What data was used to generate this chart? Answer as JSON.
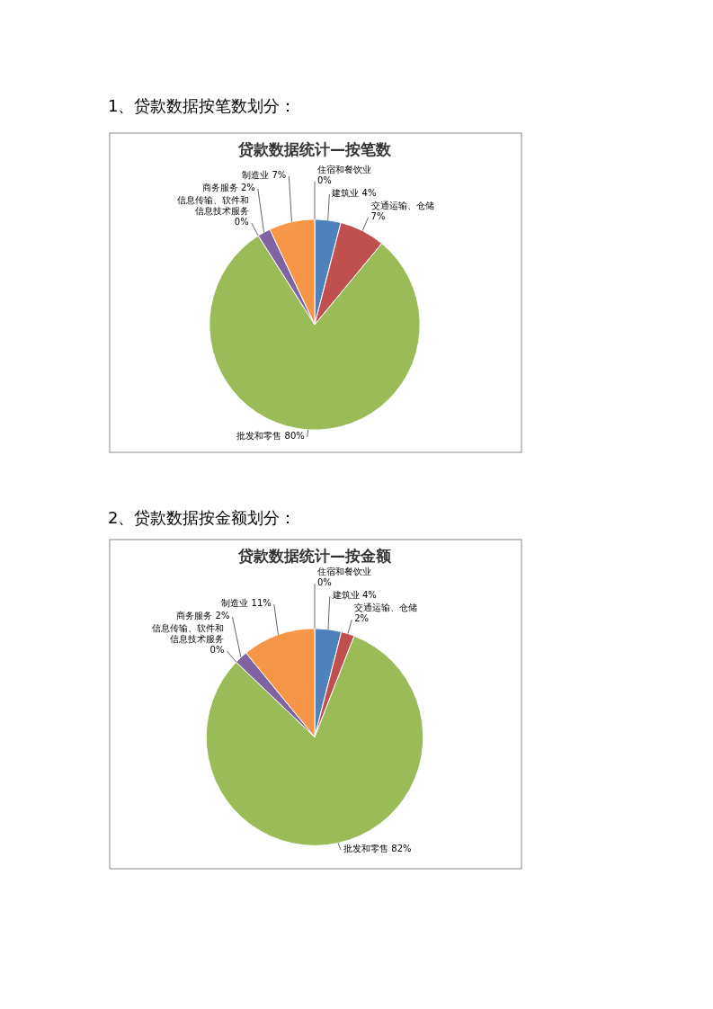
{
  "chart_data": [
    {
      "type": "pie",
      "title": "贷款数据统计—按笔数",
      "annotations": [
        "1、贷款数据按笔数划分："
      ],
      "categories": [
        "建筑业",
        "交通运输、仓储",
        "批发和零售",
        "信息传输、软件和信息技术服务",
        "商务服务",
        "制造业",
        "住宿和餐饮业"
      ],
      "values": [
        4,
        7,
        80,
        0,
        2,
        7,
        0
      ],
      "value_labels": [
        "4%",
        "7%",
        "80%",
        "0%",
        "2%",
        "7%",
        "0%"
      ],
      "colors": [
        "#4f81bd",
        "#c0504d",
        "#9bbb59",
        "#4bacc6",
        "#8064a2",
        "#f79646",
        "#2c4d75"
      ]
    },
    {
      "type": "pie",
      "title": "贷款数据统计—按金额",
      "annotations": [
        "2、贷款数据按金额划分："
      ],
      "categories": [
        "建筑业",
        "交通运输、仓储",
        "批发和零售",
        "信息传输、软件和信息技术服务",
        "商务服务",
        "制造业",
        "住宿和餐饮业"
      ],
      "values": [
        4,
        2,
        82,
        0,
        2,
        11,
        0
      ],
      "value_labels": [
        "4%",
        "2%",
        "82%",
        "0%",
        "2%",
        "11%",
        "0%"
      ],
      "colors": [
        "#4f81bd",
        "#c0504d",
        "#9bbb59",
        "#4bacc6",
        "#8064a2",
        "#f79646",
        "#2c4d75"
      ]
    }
  ]
}
